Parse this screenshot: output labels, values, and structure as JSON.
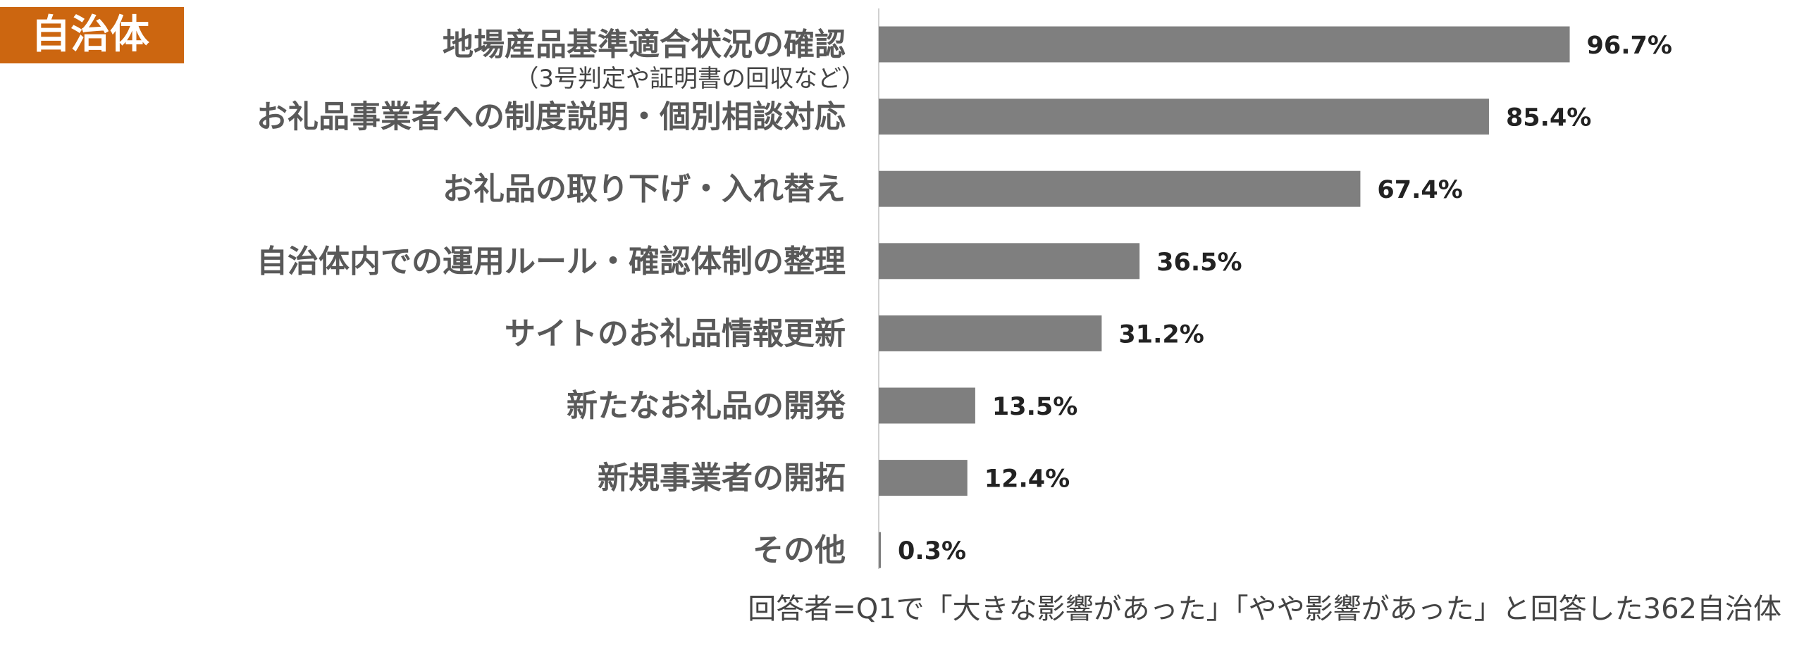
{
  "badge": "自治体",
  "footnote": "回答者=Q1で「大きな影響があった」「やや影響があった」と回答した362自治体",
  "chart_data": {
    "type": "bar",
    "orientation": "horizontal",
    "categories": [
      "地場産品基準適合状況の確認",
      "お礼品事業者への制度説明・個別相談対応",
      "お礼品の取り下げ・入れ替え",
      "自治体内での運用ルール・確認体制の整理",
      "サイトのお礼品情報更新",
      "新たなお礼品の開発",
      "新規事業者の開拓",
      "その他"
    ],
    "sublabels": [
      "（3号判定や証明書の回収など）",
      "",
      "",
      "",
      "",
      "",
      "",
      ""
    ],
    "values": [
      96.7,
      85.4,
      67.4,
      36.5,
      31.2,
      13.5,
      12.4,
      0.3
    ],
    "value_labels": [
      "96.7%",
      "85.4%",
      "67.4%",
      "36.5%",
      "31.2%",
      "13.5%",
      "12.4%",
      "0.3%"
    ],
    "xlim": [
      0,
      100
    ],
    "grid": false,
    "colors": {
      "bar": "#7f7f7f",
      "category_text": "#595959",
      "value_text": "#222222",
      "axis": "#d0d0d0",
      "badge": "#cc6610"
    }
  }
}
